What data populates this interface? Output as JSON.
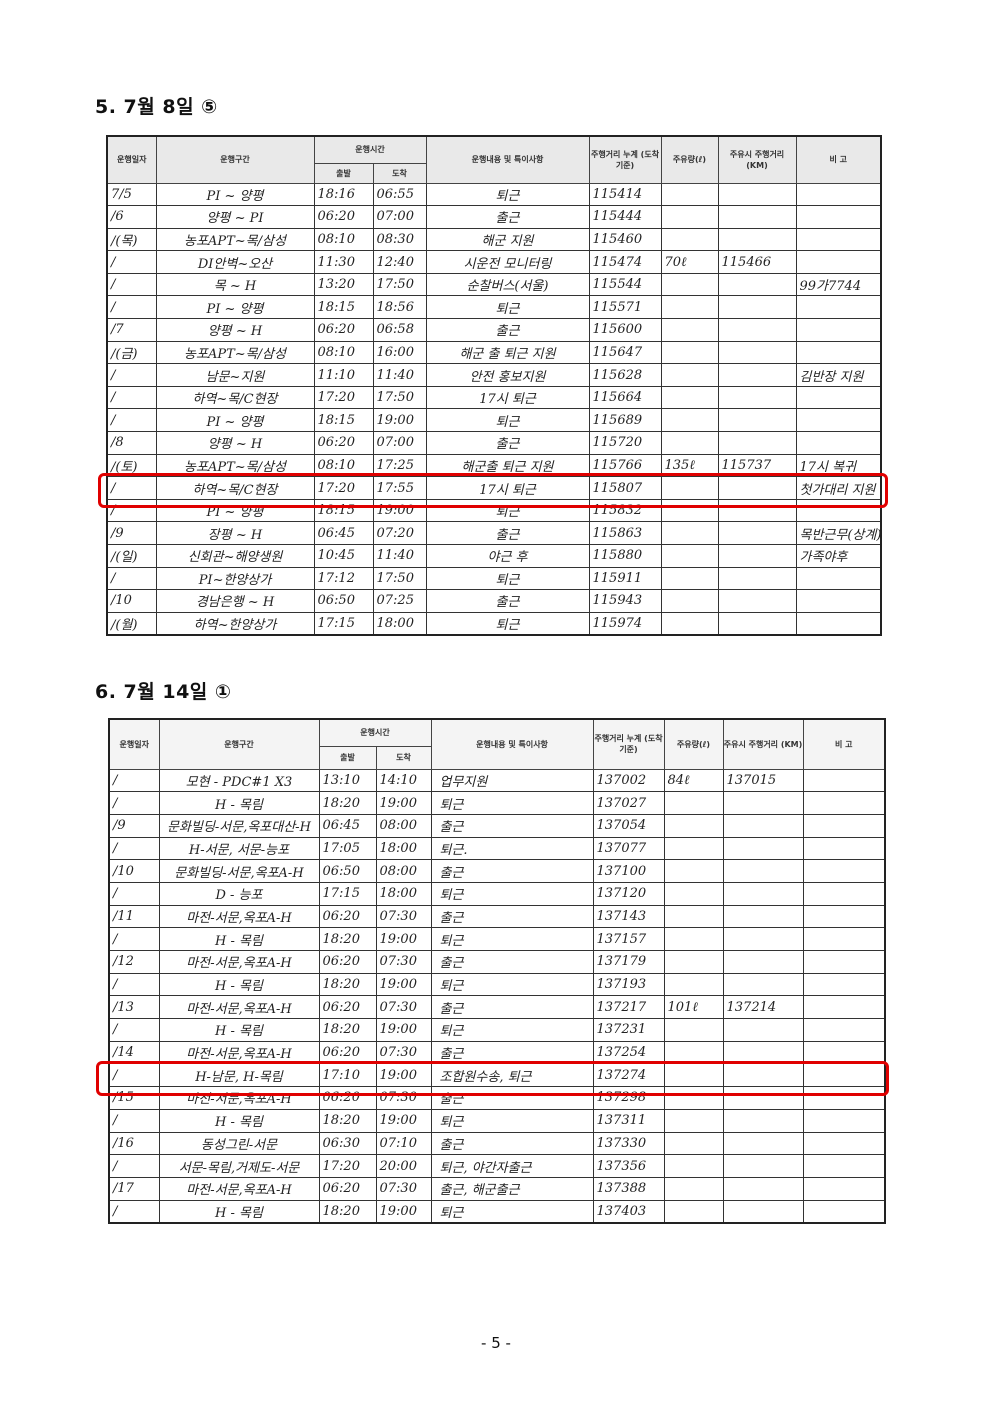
{
  "sections": [
    {
      "title": "5. 7월 8일 ⑤",
      "headers": {
        "date": "운행일자",
        "route": "운행구간",
        "time": "운행시간",
        "depart": "출발",
        "arrive": "도착",
        "content": "운행내용 및 특이사항",
        "odometer": "주행거리 누계 (도착기준)",
        "fuel": "주유량(ℓ)",
        "fuel_odometer": "주유시 주행거리 (KM)",
        "note": "비 고"
      },
      "highlighted_row": 14,
      "rows": [
        [
          "7/5",
          "PI ~ 양평",
          "18:16",
          "06:55",
          "퇴근",
          "115414",
          "",
          "",
          ""
        ],
        [
          "/6",
          "양평 ~ PI",
          "06:20",
          "07:00",
          "출근",
          "115444",
          "",
          "",
          ""
        ],
        [
          "/(목)",
          "농포APT~목/삼성",
          "08:10",
          "08:30",
          "해군 지원",
          "115460",
          "",
          "",
          ""
        ],
        [
          "/",
          "DI안벽~오산",
          "11:30",
          "12:40",
          "시운전 모니터링",
          "115474",
          "70ℓ",
          "115466",
          ""
        ],
        [
          "/",
          "목 ~ H",
          "13:20",
          "17:50",
          "순찰버스(서울)",
          "115544",
          "",
          "",
          "99가7744"
        ],
        [
          "/",
          "PI ~ 양평",
          "18:15",
          "18:56",
          "퇴근",
          "115571",
          "",
          "",
          ""
        ],
        [
          "/7",
          "양평 ~ H",
          "06:20",
          "06:58",
          "출근",
          "115600",
          "",
          "",
          ""
        ],
        [
          "/(금)",
          "농포APT~목/삼성",
          "08:10",
          "16:00",
          "해군 출 퇴근 지원",
          "115647",
          "",
          "",
          ""
        ],
        [
          "/",
          "남문~지원",
          "11:10",
          "11:40",
          "안전 홍보지원",
          "115628",
          "",
          "",
          "김반장 지원"
        ],
        [
          "/",
          "하역~목/C현장",
          "17:20",
          "17:50",
          "17시 퇴근",
          "115664",
          "",
          "",
          ""
        ],
        [
          "/",
          "PI ~ 양평",
          "18:15",
          "19:00",
          "퇴근",
          "115689",
          "",
          "",
          ""
        ],
        [
          "/8",
          "양평 ~ H",
          "06:20",
          "07:00",
          "출근",
          "115720",
          "",
          "",
          ""
        ],
        [
          "/(토)",
          "농포APT~목/삼성",
          "08:10",
          "17:25",
          "해군출 퇴근 지원",
          "115766",
          "135ℓ",
          "115737",
          "17시 복귀"
        ],
        [
          "/",
          "하역~목/C현장",
          "17:20",
          "17:55",
          "17시 퇴근",
          "115807",
          "",
          "",
          "첫가대리 지원"
        ],
        [
          "/",
          "PI ~ 양평",
          "18:15",
          "19:00",
          "퇴근",
          "115832",
          "",
          "",
          ""
        ],
        [
          "/9",
          "장평 ~ H",
          "06:45",
          "07:20",
          "출근",
          "115863",
          "",
          "",
          "목반근무(상계)"
        ],
        [
          "/(일)",
          "신회관~해양생원",
          "10:45",
          "11:40",
          "야근 후",
          "115880",
          "",
          "",
          "가족야후"
        ],
        [
          "/",
          "PI~한양상가",
          "17:12",
          "17:50",
          "퇴근",
          "115911",
          "",
          "",
          ""
        ],
        [
          "/10",
          "경남은행 ~ H",
          "06:50",
          "07:25",
          "출근",
          "115943",
          "",
          "",
          ""
        ],
        [
          "/(월)",
          "하역~한양상가",
          "17:15",
          "18:00",
          "퇴근",
          "115974",
          "",
          "",
          ""
        ]
      ]
    },
    {
      "title": "6. 7월 14일 ①",
      "headers": {
        "date": "운행일자",
        "route": "운행구간",
        "time": "운행시간",
        "depart": "출발",
        "arrive": "도착",
        "content": "운행내용 및 특이사항",
        "odometer": "주행거리 누계 (도착기준)",
        "fuel": "주유량(ℓ)",
        "fuel_odometer": "주유시 주행거리 (KM)",
        "note": "비 고"
      },
      "highlighted_row": 14,
      "rows": [
        [
          "/",
          "모현 - PDC#1 X3",
          "13:10",
          "14:10",
          "업무지원",
          "137002",
          "84ℓ",
          "137015",
          ""
        ],
        [
          "/",
          "H - 목림",
          "18:20",
          "19:00",
          "퇴근",
          "137027",
          "",
          "",
          ""
        ],
        [
          "/9",
          "문화빌딩-서문,옥포대산-H",
          "06:45",
          "08:00",
          "출근",
          "137054",
          "",
          "",
          ""
        ],
        [
          "/",
          "H-서문, 서문-능포",
          "17:05",
          "18:00",
          "퇴근.",
          "137077",
          "",
          "",
          ""
        ],
        [
          "/10",
          "문화빌딩-서문,옥포A-H",
          "06:50",
          "08:00",
          "출근",
          "137100",
          "",
          "",
          ""
        ],
        [
          "/",
          "D - 능포",
          "17:15",
          "18:00",
          "퇴근",
          "137120",
          "",
          "",
          ""
        ],
        [
          "/11",
          "마전-서문,옥포A-H",
          "06:20",
          "07:30",
          "출근",
          "137143",
          "",
          "",
          ""
        ],
        [
          "/",
          "H - 목림",
          "18:20",
          "19:00",
          "퇴근",
          "137157",
          "",
          "",
          ""
        ],
        [
          "/12",
          "마전-서문,옥포A-H",
          "06:20",
          "07:30",
          "출근",
          "137179",
          "",
          "",
          ""
        ],
        [
          "/",
          "H - 목림",
          "18:20",
          "19:00",
          "퇴근",
          "137193",
          "",
          "",
          ""
        ],
        [
          "/13",
          "마전-서문,옥포A-H",
          "06:20",
          "07:30",
          "출근",
          "137217",
          "101ℓ",
          "137214",
          ""
        ],
        [
          "/",
          "H - 목림",
          "18:20",
          "19:00",
          "퇴근",
          "137231",
          "",
          "",
          ""
        ],
        [
          "/14",
          "마전-서문,옥포A-H",
          "06:20",
          "07:30",
          "출근",
          "137254",
          "",
          "",
          ""
        ],
        [
          "/",
          "H-남문, H-목림",
          "17:10",
          "19:00",
          "조합원수송, 퇴근",
          "137274",
          "",
          "",
          ""
        ],
        [
          "/15",
          "마전-서문,옥포A-H",
          "06:20",
          "07:30",
          "출근",
          "137298",
          "",
          "",
          ""
        ],
        [
          "/",
          "H - 목림",
          "18:20",
          "19:00",
          "퇴근",
          "137311",
          "",
          "",
          ""
        ],
        [
          "/16",
          "동성그린-서문",
          "06:30",
          "07:10",
          "출근",
          "137330",
          "",
          "",
          ""
        ],
        [
          "/",
          "서문-목림,거제도-서문",
          "17:20",
          "20:00",
          "퇴근, 야간자출근",
          "137356",
          "",
          "",
          ""
        ],
        [
          "/17",
          "마전-서문,옥포A-H",
          "06:20",
          "07:30",
          "출근, 해군출근",
          "137388",
          "",
          "",
          ""
        ],
        [
          "/",
          "H - 목림",
          "18:20",
          "19:00",
          "퇴근",
          "137403",
          "",
          "",
          ""
        ]
      ]
    }
  ],
  "footer": {
    "page_number": "- 5 -"
  },
  "colors": {
    "highlight": "#e00000"
  }
}
